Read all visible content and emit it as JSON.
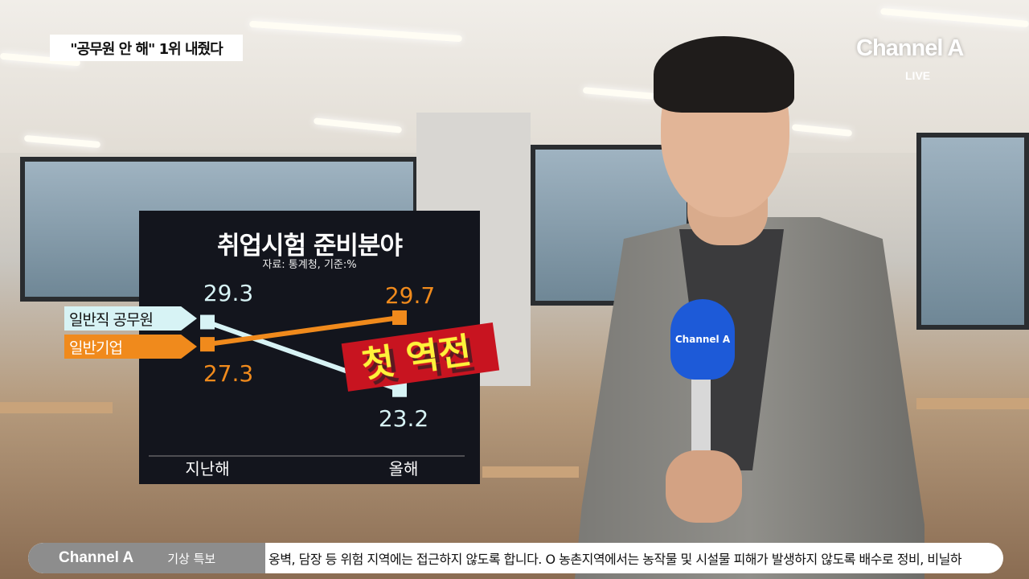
{
  "caption": "\"공무원 안 해\" 1위 내줬다",
  "logo": {
    "name": "Channel A",
    "live": "LIVE"
  },
  "mic_logo": "Channel A",
  "colors": {
    "cyan": "#d7f3f5",
    "orange": "#f08a1c",
    "panel": "#13151d"
  },
  "chart_data": {
    "type": "line",
    "title": "취업시험 준비분야",
    "subtitle": "자료: 통계청, 기준:%",
    "categories": [
      "지난해",
      "올해"
    ],
    "series": [
      {
        "name": "일반직 공무원",
        "values": [
          29.3,
          23.2
        ],
        "color": "#d7f3f5"
      },
      {
        "name": "일반기업",
        "values": [
          27.3,
          29.7
        ],
        "color": "#f08a1c"
      }
    ],
    "value_labels": [
      "29.3",
      "23.2",
      "27.3",
      "29.7"
    ],
    "annotation": "첫 역전"
  },
  "ticker": {
    "logo": "Channel A",
    "label": "기상 특보",
    "text": "옹벽, 담장 등 위험 지역에는 접근하지 않도록 합니다.  O 농촌지역에서는 농작물 및 시설물 피해가 발생하지 않도록 배수로 정비, 비닐하"
  }
}
